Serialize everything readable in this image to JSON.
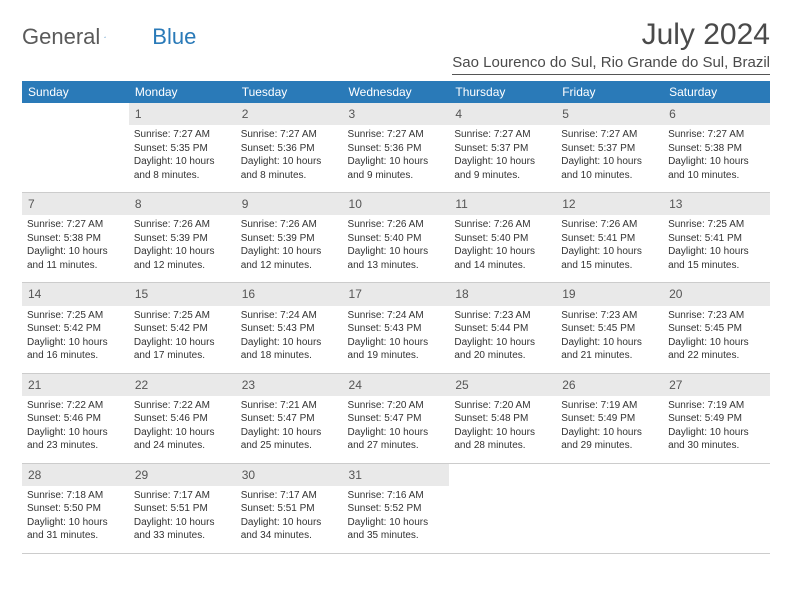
{
  "logo": {
    "part1": "General",
    "part2": "Blue"
  },
  "title": "July 2024",
  "location": "Sao Lourenco do Sul, Rio Grande do Sul, Brazil",
  "colors": {
    "header_bg": "#2a7ab8",
    "header_text": "#ffffff",
    "daynum_bg": "#e9e9e9",
    "text": "#333333",
    "logo_gray": "#5a5a5a",
    "logo_blue": "#2a7ab8"
  },
  "day_headers": [
    "Sunday",
    "Monday",
    "Tuesday",
    "Wednesday",
    "Thursday",
    "Friday",
    "Saturday"
  ],
  "weeks": [
    {
      "nums": [
        "",
        "1",
        "2",
        "3",
        "4",
        "5",
        "6"
      ],
      "cells": [
        null,
        {
          "sunrise": "7:27 AM",
          "sunset": "5:35 PM",
          "daylight": "10 hours and 8 minutes."
        },
        {
          "sunrise": "7:27 AM",
          "sunset": "5:36 PM",
          "daylight": "10 hours and 8 minutes."
        },
        {
          "sunrise": "7:27 AM",
          "sunset": "5:36 PM",
          "daylight": "10 hours and 9 minutes."
        },
        {
          "sunrise": "7:27 AM",
          "sunset": "5:37 PM",
          "daylight": "10 hours and 9 minutes."
        },
        {
          "sunrise": "7:27 AM",
          "sunset": "5:37 PM",
          "daylight": "10 hours and 10 minutes."
        },
        {
          "sunrise": "7:27 AM",
          "sunset": "5:38 PM",
          "daylight": "10 hours and 10 minutes."
        }
      ]
    },
    {
      "nums": [
        "7",
        "8",
        "9",
        "10",
        "11",
        "12",
        "13"
      ],
      "cells": [
        {
          "sunrise": "7:27 AM",
          "sunset": "5:38 PM",
          "daylight": "10 hours and 11 minutes."
        },
        {
          "sunrise": "7:26 AM",
          "sunset": "5:39 PM",
          "daylight": "10 hours and 12 minutes."
        },
        {
          "sunrise": "7:26 AM",
          "sunset": "5:39 PM",
          "daylight": "10 hours and 12 minutes."
        },
        {
          "sunrise": "7:26 AM",
          "sunset": "5:40 PM",
          "daylight": "10 hours and 13 minutes."
        },
        {
          "sunrise": "7:26 AM",
          "sunset": "5:40 PM",
          "daylight": "10 hours and 14 minutes."
        },
        {
          "sunrise": "7:26 AM",
          "sunset": "5:41 PM",
          "daylight": "10 hours and 15 minutes."
        },
        {
          "sunrise": "7:25 AM",
          "sunset": "5:41 PM",
          "daylight": "10 hours and 15 minutes."
        }
      ]
    },
    {
      "nums": [
        "14",
        "15",
        "16",
        "17",
        "18",
        "19",
        "20"
      ],
      "cells": [
        {
          "sunrise": "7:25 AM",
          "sunset": "5:42 PM",
          "daylight": "10 hours and 16 minutes."
        },
        {
          "sunrise": "7:25 AM",
          "sunset": "5:42 PM",
          "daylight": "10 hours and 17 minutes."
        },
        {
          "sunrise": "7:24 AM",
          "sunset": "5:43 PM",
          "daylight": "10 hours and 18 minutes."
        },
        {
          "sunrise": "7:24 AM",
          "sunset": "5:43 PM",
          "daylight": "10 hours and 19 minutes."
        },
        {
          "sunrise": "7:23 AM",
          "sunset": "5:44 PM",
          "daylight": "10 hours and 20 minutes."
        },
        {
          "sunrise": "7:23 AM",
          "sunset": "5:45 PM",
          "daylight": "10 hours and 21 minutes."
        },
        {
          "sunrise": "7:23 AM",
          "sunset": "5:45 PM",
          "daylight": "10 hours and 22 minutes."
        }
      ]
    },
    {
      "nums": [
        "21",
        "22",
        "23",
        "24",
        "25",
        "26",
        "27"
      ],
      "cells": [
        {
          "sunrise": "7:22 AM",
          "sunset": "5:46 PM",
          "daylight": "10 hours and 23 minutes."
        },
        {
          "sunrise": "7:22 AM",
          "sunset": "5:46 PM",
          "daylight": "10 hours and 24 minutes."
        },
        {
          "sunrise": "7:21 AM",
          "sunset": "5:47 PM",
          "daylight": "10 hours and 25 minutes."
        },
        {
          "sunrise": "7:20 AM",
          "sunset": "5:47 PM",
          "daylight": "10 hours and 27 minutes."
        },
        {
          "sunrise": "7:20 AM",
          "sunset": "5:48 PM",
          "daylight": "10 hours and 28 minutes."
        },
        {
          "sunrise": "7:19 AM",
          "sunset": "5:49 PM",
          "daylight": "10 hours and 29 minutes."
        },
        {
          "sunrise": "7:19 AM",
          "sunset": "5:49 PM",
          "daylight": "10 hours and 30 minutes."
        }
      ]
    },
    {
      "nums": [
        "28",
        "29",
        "30",
        "31",
        "",
        "",
        ""
      ],
      "cells": [
        {
          "sunrise": "7:18 AM",
          "sunset": "5:50 PM",
          "daylight": "10 hours and 31 minutes."
        },
        {
          "sunrise": "7:17 AM",
          "sunset": "5:51 PM",
          "daylight": "10 hours and 33 minutes."
        },
        {
          "sunrise": "7:17 AM",
          "sunset": "5:51 PM",
          "daylight": "10 hours and 34 minutes."
        },
        {
          "sunrise": "7:16 AM",
          "sunset": "5:52 PM",
          "daylight": "10 hours and 35 minutes."
        },
        null,
        null,
        null
      ]
    }
  ],
  "labels": {
    "sunrise": "Sunrise:",
    "sunset": "Sunset:",
    "daylight": "Daylight:"
  }
}
